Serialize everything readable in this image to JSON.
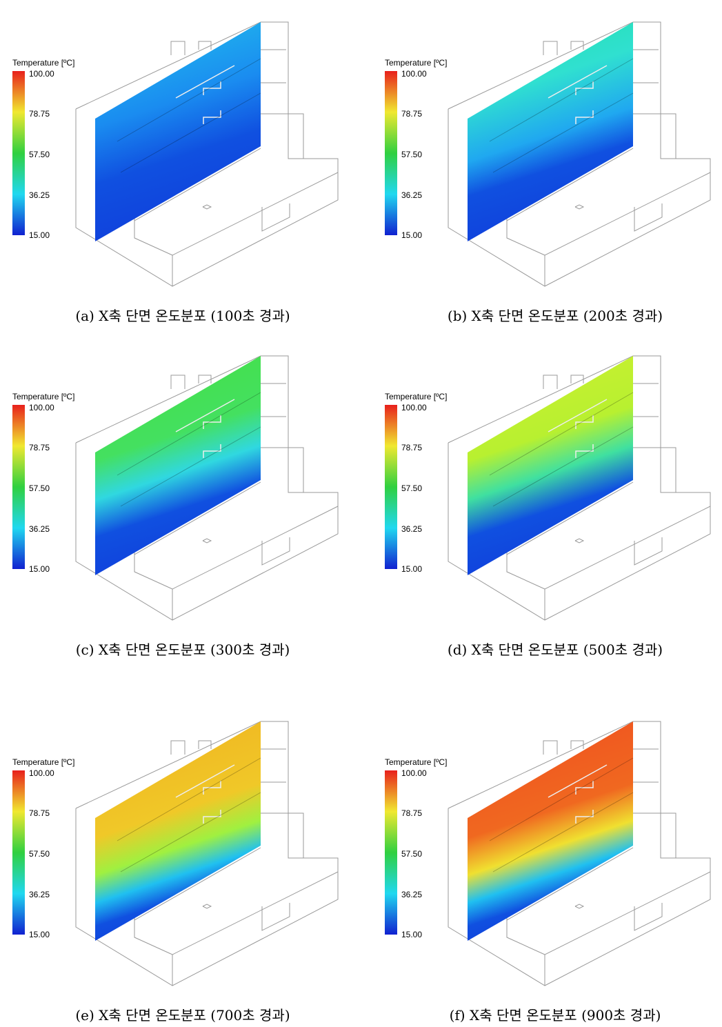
{
  "panels": [
    {
      "legend": {
        "title": "Temperature [ºC]",
        "ticks": [
          "100.00",
          "78.75",
          "57.50",
          "36.25",
          "15.00"
        ]
      },
      "caption": "(a) X축 단면 온도분포 (100초 경과)"
    },
    {
      "legend": {
        "title": "Temperature [ºC]",
        "ticks": [
          "100.00",
          "78.75",
          "57.50",
          "36.25",
          "15.00"
        ]
      },
      "caption": "(b) X축 단면 온도분포 (200초 경과)"
    },
    {
      "legend": {
        "title": "Temperature [ºC]",
        "ticks": [
          "100.00",
          "78.75",
          "57.50",
          "36.25",
          "15.00"
        ]
      },
      "caption": "(c) X축 단면 온도분포 (300초 경과)"
    },
    {
      "legend": {
        "title": "Temperature [ºC]",
        "ticks": [
          "100.00",
          "78.75",
          "57.50",
          "36.25",
          "15.00"
        ]
      },
      "caption": "(d) X축 단면 온도분포 (500초 경과)"
    },
    {
      "legend": {
        "title": "Temperature [ºC]",
        "ticks": [
          "100.00",
          "78.75",
          "57.50",
          "36.25",
          "15.00"
        ]
      },
      "caption": "(e) X축 단면 온도분포 (700초 경과)"
    },
    {
      "legend": {
        "title": "Temperature [ºC]",
        "ticks": [
          "100.00",
          "78.75",
          "57.50",
          "36.25",
          "15.00"
        ]
      },
      "caption": "(f) X축 단면 온도분포 (900초 경과)"
    }
  ]
}
